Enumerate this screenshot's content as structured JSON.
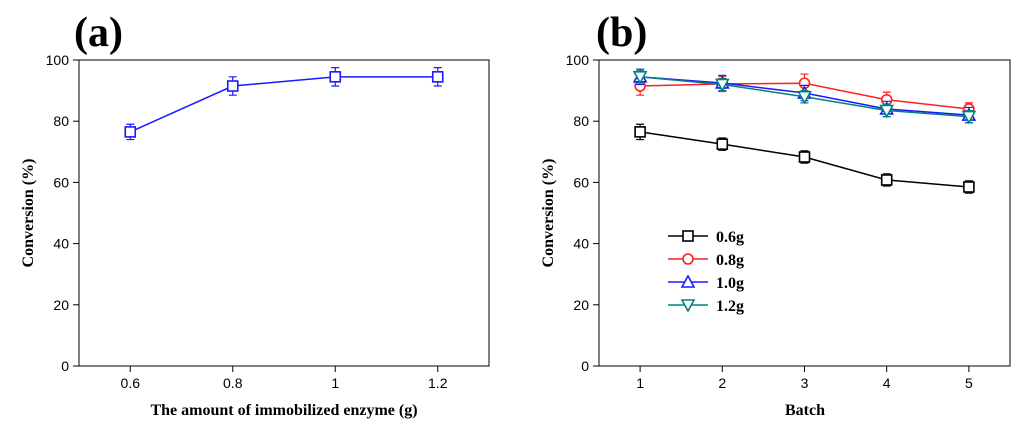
{
  "chart_data": [
    {
      "type": "line",
      "panel_label": "(a)",
      "xlabel": "The amount of immobilized enzyme (g)",
      "ylabel": "Conversion (%)",
      "xlim": [
        0.5,
        1.3
      ],
      "ylim": [
        0,
        100
      ],
      "x_ticks": [
        0.6,
        0.8,
        1.0,
        1.2
      ],
      "x_tick_labels": [
        "0.6",
        "0.8",
        "1",
        "1.2"
      ],
      "y_ticks": [
        0,
        20,
        40,
        60,
        80,
        100
      ],
      "y_tick_labels": [
        "0",
        "20",
        "40",
        "60",
        "80",
        "100"
      ],
      "legend": "none",
      "series": [
        {
          "name": "conversion",
          "marker": "square",
          "color": "#1a1aff",
          "x": [
            0.6,
            0.8,
            1.0,
            1.2
          ],
          "y": [
            76.5,
            91.5,
            94.5,
            94.5
          ],
          "err": [
            2.5,
            3,
            3,
            3
          ]
        }
      ]
    },
    {
      "type": "line",
      "panel_label": "(b)",
      "xlabel": "Batch",
      "ylabel": "Conversion (%)",
      "xlim": [
        0.5,
        5.5
      ],
      "ylim": [
        0,
        100
      ],
      "x_ticks": [
        1,
        2,
        3,
        4,
        5
      ],
      "x_tick_labels": [
        "1",
        "2",
        "3",
        "4",
        "5"
      ],
      "y_ticks": [
        0,
        20,
        40,
        60,
        80,
        100
      ],
      "y_tick_labels": [
        "0",
        "20",
        "40",
        "60",
        "80",
        "100"
      ],
      "legend": "center-left",
      "series": [
        {
          "name": "0.6g",
          "marker": "square",
          "color": "#000000",
          "x": [
            1,
            2,
            3,
            4,
            5
          ],
          "y": [
            76.5,
            72.5,
            68.3,
            60.8,
            58.5
          ],
          "err": [
            2.5,
            2,
            2,
            2,
            2
          ]
        },
        {
          "name": "0.8g",
          "marker": "circle",
          "color": "#ff2020",
          "x": [
            1,
            2,
            3,
            4,
            5
          ],
          "y": [
            91.5,
            92.2,
            92.4,
            87.0,
            84.0
          ],
          "err": [
            3,
            2.5,
            3,
            2.5,
            2
          ]
        },
        {
          "name": "1.0g",
          "marker": "triangle-up",
          "color": "#1a1aff",
          "x": [
            1,
            2,
            3,
            4,
            5
          ],
          "y": [
            94.5,
            92.5,
            89.2,
            84.0,
            82.0
          ],
          "err": [
            2.5,
            2.5,
            2.5,
            2.5,
            2.5
          ]
        },
        {
          "name": "1.2g",
          "marker": "triangle-down",
          "color": "#008080",
          "x": [
            1,
            2,
            3,
            4,
            5
          ],
          "y": [
            94.5,
            92.0,
            88.0,
            83.5,
            81.5
          ],
          "err": [
            2,
            2,
            2,
            2,
            2
          ]
        }
      ]
    }
  ]
}
